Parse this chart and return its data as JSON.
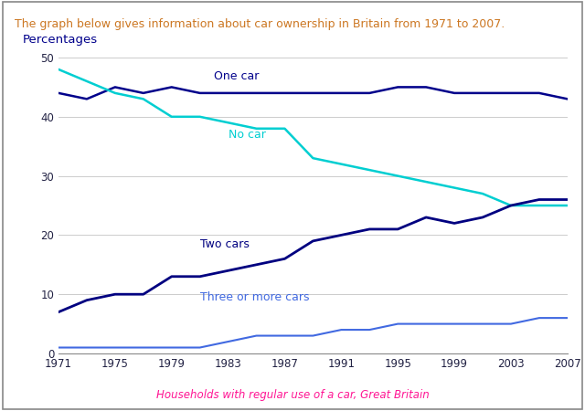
{
  "title": "The graph below gives information about car ownership in Britain from 1971 to 2007.",
  "title_color": "#CC7722",
  "ylabel": "Percentages",
  "ylabel_color": "#00008B",
  "xlabel_note": "Households with regular use of a car, Great Britain",
  "xlabel_note_color": "#FF1493",
  "background_color": "#ffffff",
  "plot_bg_color": "#ffffff",
  "years": [
    1971,
    1973,
    1975,
    1977,
    1979,
    1981,
    1983,
    1985,
    1987,
    1989,
    1991,
    1993,
    1995,
    1997,
    1999,
    2001,
    2003,
    2005,
    2007
  ],
  "one_car": [
    44,
    43,
    45,
    44,
    45,
    44,
    44,
    44,
    44,
    44,
    44,
    44,
    45,
    45,
    44,
    44,
    44,
    44,
    43
  ],
  "no_car": [
    48,
    46,
    44,
    43,
    40,
    40,
    39,
    38,
    38,
    33,
    32,
    31,
    30,
    29,
    28,
    27,
    25,
    25,
    25
  ],
  "two_cars": [
    7,
    9,
    10,
    10,
    13,
    13,
    14,
    15,
    16,
    19,
    20,
    21,
    21,
    23,
    22,
    23,
    25,
    26,
    26
  ],
  "three_plus": [
    1,
    1,
    1,
    1,
    1,
    1,
    2,
    3,
    3,
    3,
    4,
    4,
    5,
    5,
    5,
    5,
    5,
    6,
    6
  ],
  "one_car_color": "#00008B",
  "no_car_color": "#00CED1",
  "two_cars_color": "#000080",
  "three_plus_color": "#4169E1",
  "one_car_label": "One car",
  "no_car_label": "No car",
  "two_cars_label": "Two cars",
  "three_plus_label": "Three or more cars",
  "ylim": [
    0,
    50
  ],
  "yticks": [
    0,
    10,
    20,
    30,
    40,
    50
  ],
  "xticks": [
    1971,
    1975,
    1979,
    1983,
    1987,
    1991,
    1995,
    1999,
    2003,
    2007
  ],
  "one_car_lw": 1.8,
  "no_car_lw": 1.8,
  "two_cars_lw": 2.0,
  "three_plus_lw": 1.5
}
